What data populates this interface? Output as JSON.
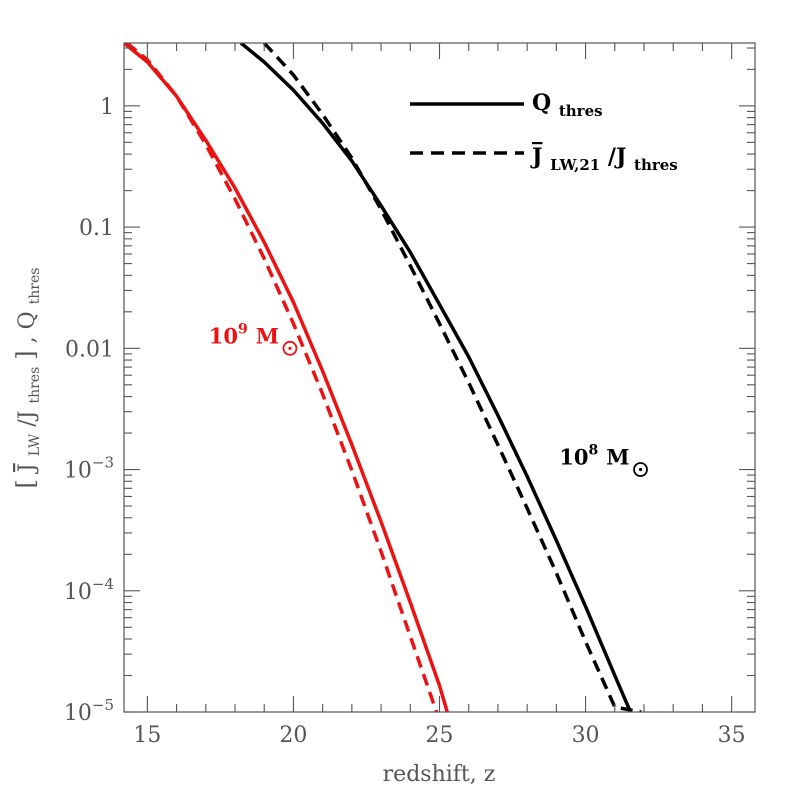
{
  "chart_data": {
    "type": "line",
    "xlabel": "redshift, z",
    "ylabel": {
      "open": "[",
      "main1": "J",
      "sub1": "LW",
      "slash": "/J",
      "sub2": "thres",
      "close": "]",
      "comma": " , Q",
      "sub3": "thres"
    },
    "xlim": [
      14.2,
      35.8
    ],
    "ylim": [
      1e-05,
      3.3
    ],
    "y_scale": "log",
    "x_ticks": [
      {
        "value": 15,
        "label": "15"
      },
      {
        "value": 20,
        "label": "20"
      },
      {
        "value": 25,
        "label": "25"
      },
      {
        "value": 30,
        "label": "30"
      },
      {
        "value": 35,
        "label": "35"
      }
    ],
    "y_ticks": [
      {
        "value": 1,
        "label": "1",
        "base": "1",
        "exp": ""
      },
      {
        "value": 0.1,
        "label": "0.1",
        "base": "0.1",
        "exp": ""
      },
      {
        "value": 0.01,
        "label": "0.01",
        "base": "0.01",
        "exp": ""
      },
      {
        "value": 0.001,
        "label": "10^-3",
        "base": "10",
        "exp": "−3"
      },
      {
        "value": 0.0001,
        "label": "10^-4",
        "base": "10",
        "exp": "−4"
      },
      {
        "value": 1e-05,
        "label": "10^-5",
        "base": "10",
        "exp": "−5"
      }
    ],
    "legend": {
      "placement": "top-right",
      "entries": [
        {
          "style": "solid",
          "main": "Q",
          "sub": "thres"
        },
        {
          "style": "dashed",
          "main": "J",
          "sub": "LW,21",
          "mid": "/J",
          "sub2": "thres"
        }
      ]
    },
    "annotations": [
      {
        "base": "10",
        "exp": "9",
        "unit": "M",
        "color": "#ee1111",
        "z": 17.1,
        "y": 0.011
      },
      {
        "base": "10",
        "exp": "8",
        "unit": "M",
        "color": "#000000",
        "z": 29.1,
        "y": 0.0011
      }
    ],
    "series": [
      {
        "mass": "1e9",
        "style": "solid",
        "color": "#ee1111",
        "x": [
          14.2,
          15,
          16,
          17,
          18,
          19,
          20,
          21,
          22,
          23,
          24,
          25,
          26,
          26.5
        ],
        "y": [
          3.3,
          2.3,
          1.2,
          0.52,
          0.21,
          0.075,
          0.024,
          0.0065,
          0.0016,
          0.00037,
          8e-05,
          1.65e-05,
          2.5e-06,
          9e-06
        ]
      },
      {
        "mass": "1e9",
        "style": "dashed",
        "color": "#ee1111",
        "x": [
          14.3,
          15,
          16,
          17,
          18,
          19,
          20,
          21,
          22,
          23,
          24,
          25,
          25.85
        ],
        "y": [
          3.3,
          2.4,
          1.2,
          0.48,
          0.17,
          0.055,
          0.016,
          0.0042,
          0.00098,
          0.00021,
          4.2e-05,
          8.5e-06,
          1e-05
        ]
      },
      {
        "mass": "1e8",
        "style": "solid",
        "color": "#000000",
        "x": [
          18.2,
          19,
          20,
          21,
          22,
          23,
          24,
          25,
          26,
          27,
          28,
          29,
          30,
          31,
          32,
          32.5
        ],
        "y": [
          3.3,
          2.3,
          1.35,
          0.72,
          0.35,
          0.15,
          0.062,
          0.023,
          0.0085,
          0.0028,
          0.00088,
          0.00026,
          7.4e-05,
          2e-05,
          5.5e-06,
          1e-05
        ]
      },
      {
        "mass": "1e8",
        "style": "dashed",
        "color": "#000000",
        "x": [
          19.0,
          20,
          21,
          22,
          23,
          24,
          25,
          26,
          27,
          28,
          29,
          30,
          31,
          31.9
        ],
        "y": [
          3.3,
          1.8,
          0.85,
          0.37,
          0.14,
          0.048,
          0.016,
          0.0052,
          0.0016,
          0.00048,
          0.00014,
          3.8e-05,
          1.1e-05,
          1e-05
        ]
      }
    ]
  }
}
